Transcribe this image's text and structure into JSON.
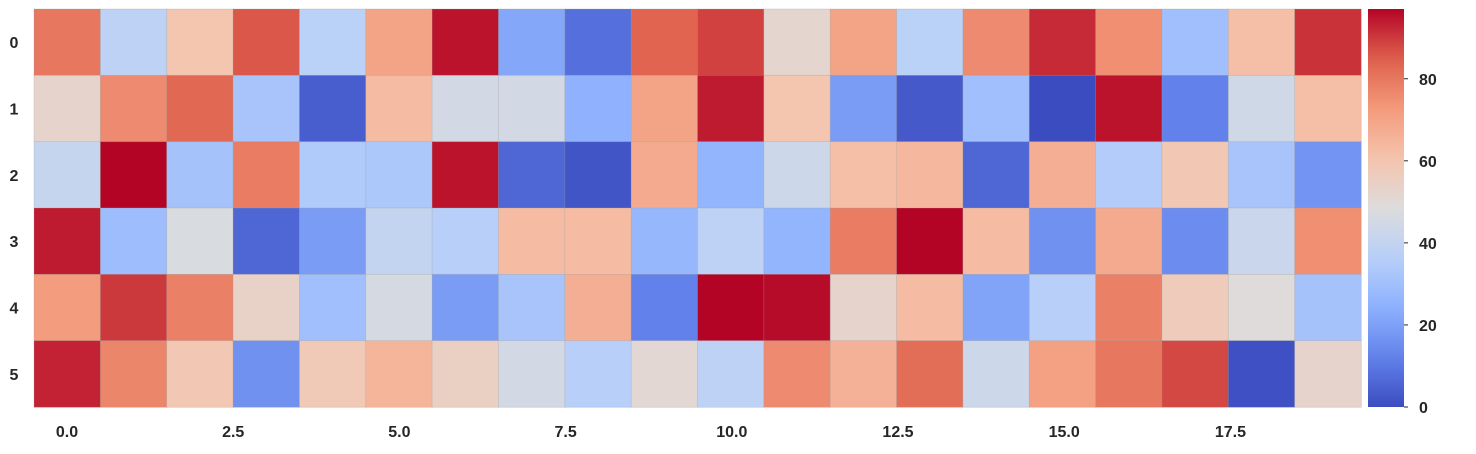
{
  "chart_data": {
    "type": "heatmap",
    "title": "",
    "xlabel": "",
    "ylabel": "",
    "rows": [
      "0",
      "1",
      "2",
      "3",
      "4",
      "5"
    ],
    "x_ticks": [
      0.0,
      2.5,
      5.0,
      7.5,
      10.0,
      12.5,
      15.0,
      17.5
    ],
    "x_tick_labels": [
      "0.0",
      "2.5",
      "5.0",
      "7.5",
      "10.0",
      "12.5",
      "15.0",
      "17.5"
    ],
    "x_range": [
      0,
      20
    ],
    "n_cols": 20,
    "values": [
      [
        80,
        38,
        60,
        86,
        37,
        70,
        95,
        22,
        8,
        84,
        89,
        52,
        70,
        37,
        76,
        92,
        75,
        30,
        62,
        91
      ],
      [
        53,
        76,
        83,
        32,
        4,
        63,
        45,
        45,
        25,
        70,
        94,
        60,
        19,
        3,
        30,
        0,
        95,
        12,
        44,
        62
      ],
      [
        41,
        98,
        31,
        79,
        34,
        33,
        95,
        6,
        2,
        68,
        26,
        43,
        62,
        64,
        6,
        67,
        35,
        59,
        32,
        17
      ],
      [
        94,
        29,
        47,
        6,
        19,
        40,
        36,
        63,
        63,
        27,
        38,
        26,
        79,
        97,
        63,
        16,
        68,
        15,
        42,
        75
      ],
      [
        72,
        90,
        78,
        54,
        30,
        46,
        19,
        32,
        67,
        12,
        98,
        96,
        53,
        63,
        21,
        36,
        78,
        57,
        49,
        31
      ],
      [
        93,
        77,
        59,
        16,
        58,
        65,
        55,
        45,
        36,
        51,
        38,
        76,
        66,
        82,
        43,
        71,
        80,
        88,
        1,
        53
      ]
    ],
    "colorbar": {
      "colormap": "coolwarm",
      "vmin": 0,
      "vmax": 97,
      "ticks": [
        0,
        20,
        40,
        60,
        80
      ],
      "tick_labels": [
        "0",
        "20",
        "40",
        "60",
        "80"
      ]
    },
    "grid": false,
    "legend": "none"
  }
}
